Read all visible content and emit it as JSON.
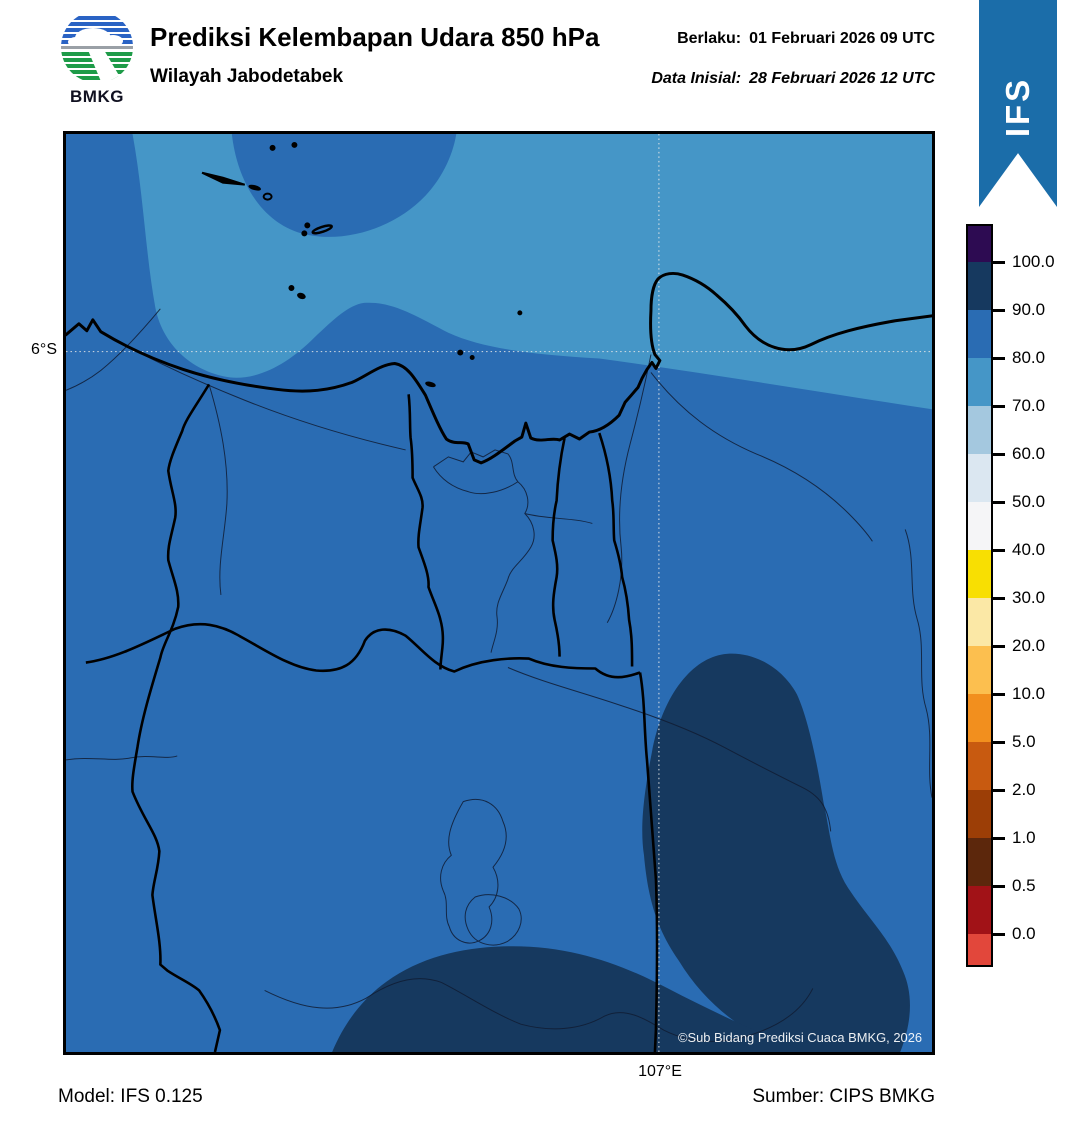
{
  "header": {
    "logo_text": "BMKG",
    "title": "Prediksi Kelembapan Udara 850 hPa",
    "subtitle": "Wilayah Jabodetabek",
    "valid_label": "Berlaku:",
    "valid_value": "01 Februari 2026 09 UTC",
    "init_label": "Data Inisial:",
    "init_value": "28 Februari 2026 12 UTC"
  },
  "ribbon": {
    "label": "IFS",
    "color": "#1b6da9"
  },
  "map": {
    "lat_label": "6°S",
    "lon_label": "107°E",
    "copyright": "©Sub Bidang Prediksi Cuaca BMKG, 2026",
    "colors": {
      "base_80_90": "#2a6cb3",
      "band_70_80": "#4596c7",
      "navy_90_100": "#16395f",
      "coast_stroke": "#000000",
      "thin_stroke": "#101c33",
      "grid_stroke": "#e8e8e8"
    },
    "regions": [
      {
        "name": "north-sea-band",
        "range": "70.0–80.0"
      },
      {
        "name": "base-area",
        "range": "80.0–90.0"
      },
      {
        "name": "north-dome",
        "range": "80.0–90.0"
      },
      {
        "name": "southeast-blob",
        "range": "90.0–100.0"
      },
      {
        "name": "south-strip",
        "range": "90.0–100.0"
      }
    ]
  },
  "colorbar": {
    "tick_labels": [
      "100.0",
      "90.0",
      "80.0",
      "70.0",
      "60.0",
      "50.0",
      "40.0",
      "30.0",
      "20.0",
      "10.0",
      "5.0",
      "2.0",
      "1.0",
      "0.5",
      "0.0"
    ],
    "colors": [
      "#2d0b52",
      "#16395f",
      "#2a6cb3",
      "#4596c7",
      "#a4c8df",
      "#dbe7f1",
      "#f5f5f7",
      "#f8df02",
      "#fbe8a6",
      "#fcbf4f",
      "#f28f1e",
      "#c85a10",
      "#9c3e06",
      "#5c270c",
      "#a11217",
      "#e2473b"
    ]
  },
  "footer": {
    "model": "Model: IFS 0.125",
    "source": "Sumber: CIPS BMKG"
  }
}
